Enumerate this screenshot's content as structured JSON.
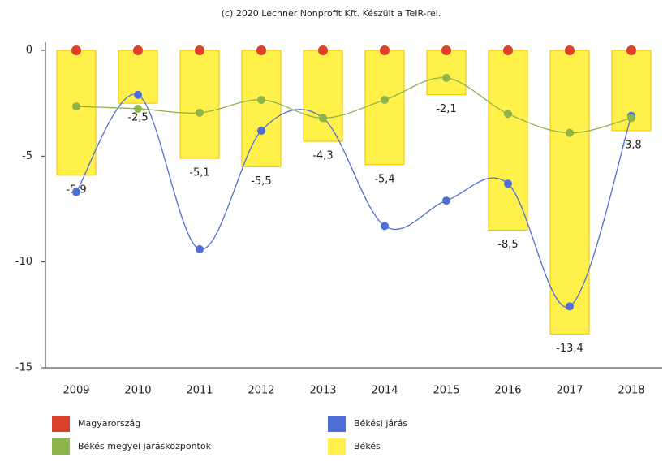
{
  "chart_data": {
    "type": "bar",
    "title": "(c) 2020 Lechner Nonprofit Kft. Készült a TeIR-rel.",
    "categories": [
      "2009",
      "2010",
      "2011",
      "2012",
      "2013",
      "2014",
      "2015",
      "2016",
      "2017",
      "2018"
    ],
    "ylim": [
      -15,
      0
    ],
    "yticks": [
      0,
      -5,
      -10,
      -15
    ],
    "series": [
      {
        "name": "Magyarország",
        "type": "markers",
        "color": "#d9412b",
        "values": [
          0,
          0,
          0,
          0,
          0,
          0,
          0,
          0,
          0,
          0
        ]
      },
      {
        "name": "Békési járás",
        "type": "line",
        "color": "#4f6fd6",
        "values": [
          -6.7,
          -2.1,
          -9.4,
          -3.8,
          -3.2,
          -8.3,
          -7.1,
          -6.3,
          -12.1,
          -3.1
        ]
      },
      {
        "name": "Békés megyei járásközpontok",
        "type": "line",
        "color": "#8db54a",
        "values": [
          -2.65,
          -2.76,
          -2.95,
          -2.34,
          -3.2,
          -2.34,
          -1.3,
          -3.0,
          -3.9,
          -3.2
        ]
      },
      {
        "name": "Békés",
        "type": "bar",
        "color": "#fff04a",
        "values": [
          -5.9,
          -2.5,
          -5.1,
          -5.5,
          -4.3,
          -5.4,
          -2.1,
          -8.5,
          -13.4,
          -3.8
        ],
        "value_labels": [
          "-5,9",
          "-2,5",
          "-5,1",
          "-5,5",
          "-4,3",
          "-5,4",
          "-2,1",
          "-8,5",
          "-13,4",
          "-3,8"
        ]
      }
    ]
  }
}
